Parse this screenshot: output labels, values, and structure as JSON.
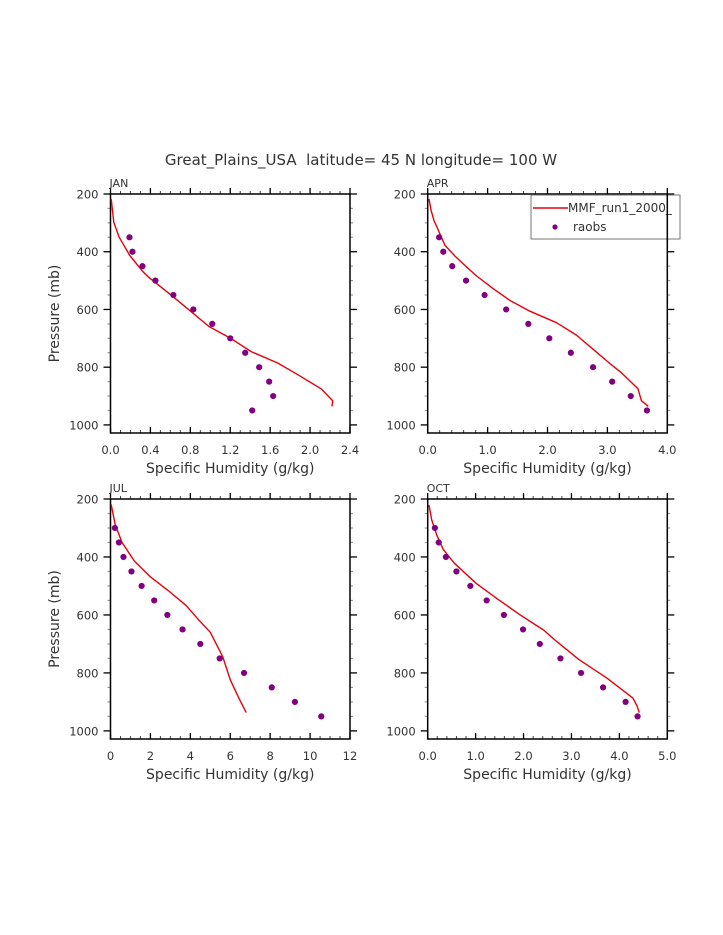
{
  "chart_data": [
    {
      "type": "line",
      "panel": "JAN",
      "title": "JAN",
      "xlabel": "Specific Humidity (g/kg)",
      "ylabel": "Pressure (mb)",
      "xlim": [
        0.0,
        2.4
      ],
      "ylim": [
        200,
        1028
      ],
      "y_inverted": true,
      "xticks": [
        0.0,
        0.4,
        0.8,
        1.2,
        1.6,
        2.0,
        2.4
      ],
      "xtick_labels": [
        "0.0",
        "0.4",
        "0.8",
        "1.2",
        "1.6",
        "2.0",
        "2.4"
      ],
      "x_minor_step": 0.1,
      "yticks": [
        200,
        400,
        600,
        800,
        1000
      ],
      "ytick_labels": [
        "200",
        "400",
        "600",
        "800",
        "1000"
      ],
      "y_minor_step": 50,
      "grid": false,
      "series": [
        {
          "name": "MMF_run1_2000_",
          "kind": "line",
          "x": [
            0.007,
            0.033,
            0.087,
            0.193,
            0.327,
            0.377,
            0.61,
            0.81,
            0.987,
            1.193,
            1.41,
            1.677,
            1.877,
            2.11,
            2.227,
            2.22
          ],
          "y": [
            217,
            298,
            350,
            413,
            470,
            487,
            551,
            608,
            659,
            698,
            746,
            786,
            826,
            875,
            916,
            936
          ]
        },
        {
          "name": "raobs",
          "kind": "scatter",
          "x": [
            0.19,
            0.22,
            0.32,
            0.45,
            0.63,
            0.83,
            1.02,
            1.2,
            1.35,
            1.49,
            1.59,
            1.63,
            1.42
          ],
          "y": [
            350,
            400,
            450,
            500,
            550,
            600,
            650,
            700,
            750,
            800,
            850,
            900,
            950
          ]
        }
      ]
    },
    {
      "type": "line",
      "panel": "APR",
      "title": "APR",
      "xlabel": "Specific Humidity (g/kg)",
      "ylabel": "",
      "xlim": [
        0.0,
        4.0
      ],
      "ylim": [
        200,
        1028
      ],
      "y_inverted": true,
      "xticks": [
        0.0,
        1.0,
        2.0,
        3.0,
        4.0
      ],
      "xtick_labels": [
        "0.0",
        "1.0",
        "2.0",
        "3.0",
        "4.0"
      ],
      "x_minor_step": 0.2,
      "yticks": [
        200,
        400,
        600,
        800,
        1000
      ],
      "ytick_labels": [
        "200",
        "400",
        "600",
        "800",
        "1000"
      ],
      "y_minor_step": 50,
      "grid": false,
      "legend": {
        "placement": "top-right",
        "entries": [
          "MMF_run1_2000_",
          "raobs"
        ]
      },
      "series": [
        {
          "name": "MMF_run1_2000_",
          "kind": "line",
          "x": [
            0.022,
            0.056,
            0.106,
            0.178,
            0.289,
            0.456,
            0.65,
            0.817,
            1.094,
            1.383,
            1.706,
            2.15,
            2.483,
            2.789,
            3.039,
            3.233,
            3.511,
            3.567,
            3.683
          ],
          "y": [
            217,
            257,
            292,
            326,
            378,
            415,
            453,
            484,
            528,
            570,
            606,
            646,
            689,
            743,
            787,
            819,
            875,
            916,
            936
          ]
        },
        {
          "name": "raobs",
          "kind": "scatter",
          "x": [
            0.19,
            0.26,
            0.41,
            0.64,
            0.95,
            1.31,
            1.68,
            2.03,
            2.39,
            2.76,
            3.08,
            3.39,
            3.66
          ],
          "y": [
            350,
            400,
            450,
            500,
            550,
            600,
            650,
            700,
            750,
            800,
            850,
            900,
            950
          ]
        }
      ]
    },
    {
      "type": "line",
      "panel": "JUL",
      "title": "JUL",
      "xlabel": "Specific Humidity (g/kg)",
      "ylabel": "Pressure (mb)",
      "xlim": [
        0,
        12
      ],
      "ylim": [
        200,
        1028
      ],
      "y_inverted": true,
      "xticks": [
        0,
        2,
        4,
        6,
        8,
        10,
        12
      ],
      "xtick_labels": [
        "0",
        "2",
        "4",
        "6",
        "8",
        "10",
        "12"
      ],
      "x_minor_step": 0.5,
      "yticks": [
        200,
        400,
        600,
        800,
        1000
      ],
      "ytick_labels": [
        "200",
        "400",
        "600",
        "800",
        "1000"
      ],
      "y_minor_step": 50,
      "grid": false,
      "series": [
        {
          "name": "MMF_run1_2000_",
          "kind": "line",
          "x": [
            0.03,
            0.23,
            0.57,
            1.19,
            1.99,
            2.91,
            3.8,
            4.42,
            5.0,
            5.62,
            6.0,
            6.42,
            6.8
          ],
          "y": [
            218,
            287,
            349,
            414,
            468,
            517,
            568,
            617,
            660,
            744,
            824,
            885,
            937
          ]
        },
        {
          "name": "raobs",
          "kind": "scatter",
          "x": [
            0.22,
            0.42,
            0.65,
            1.05,
            1.56,
            2.19,
            2.85,
            3.61,
            4.5,
            5.47,
            6.69,
            8.08,
            9.24,
            10.56
          ],
          "y": [
            300,
            350,
            400,
            450,
            500,
            550,
            600,
            650,
            700,
            750,
            800,
            850,
            900,
            950
          ]
        }
      ]
    },
    {
      "type": "line",
      "panel": "OCT",
      "title": "OCT",
      "xlabel": "Specific Humidity (g/kg)",
      "ylabel": "",
      "xlim": [
        0.0,
        5.0
      ],
      "ylim": [
        200,
        1028
      ],
      "y_inverted": true,
      "xticks": [
        0.0,
        1.0,
        2.0,
        3.0,
        4.0,
        5.0
      ],
      "xtick_labels": [
        "0.0",
        "1.0",
        "2.0",
        "3.0",
        "4.0",
        "5.0"
      ],
      "x_minor_step": 0.2,
      "yticks": [
        200,
        400,
        600,
        800,
        1000
      ],
      "ytick_labels": [
        "200",
        "400",
        "600",
        "800",
        "1000"
      ],
      "y_minor_step": 50,
      "grid": false,
      "series": [
        {
          "name": "MMF_run1_2000_",
          "kind": "line",
          "x": [
            0.028,
            0.084,
            0.188,
            0.327,
            0.557,
            1.01,
            1.44,
            1.93,
            2.416,
            2.695,
            3.148,
            3.739,
            4.283,
            4.366,
            4.415
          ],
          "y": [
            221,
            272,
            324,
            375,
            422,
            491,
            543,
            600,
            652,
            692,
            753,
            818,
            887,
            913,
            937
          ]
        },
        {
          "name": "raobs",
          "kind": "scatter",
          "x": [
            0.15,
            0.23,
            0.38,
            0.6,
            0.89,
            1.23,
            1.59,
            1.99,
            2.34,
            2.77,
            3.2,
            3.66,
            4.13,
            4.38
          ],
          "y": [
            300,
            350,
            400,
            450,
            500,
            550,
            600,
            650,
            700,
            750,
            800,
            850,
            900,
            950
          ]
        }
      ]
    }
  ],
  "figure": {
    "title": "Great_Plains_USA  latitude= 45 N longitude= 100 W"
  },
  "legend": {
    "entries": [
      {
        "label": "MMF_run1_2000_",
        "kind": "line"
      },
      {
        "label": "raobs",
        "kind": "marker"
      }
    ]
  },
  "colors": {
    "model_line": "#e8000b",
    "obs_marker": "#800080",
    "axis": "#000000",
    "text": "#333333",
    "minor_tick": "#999999"
  }
}
